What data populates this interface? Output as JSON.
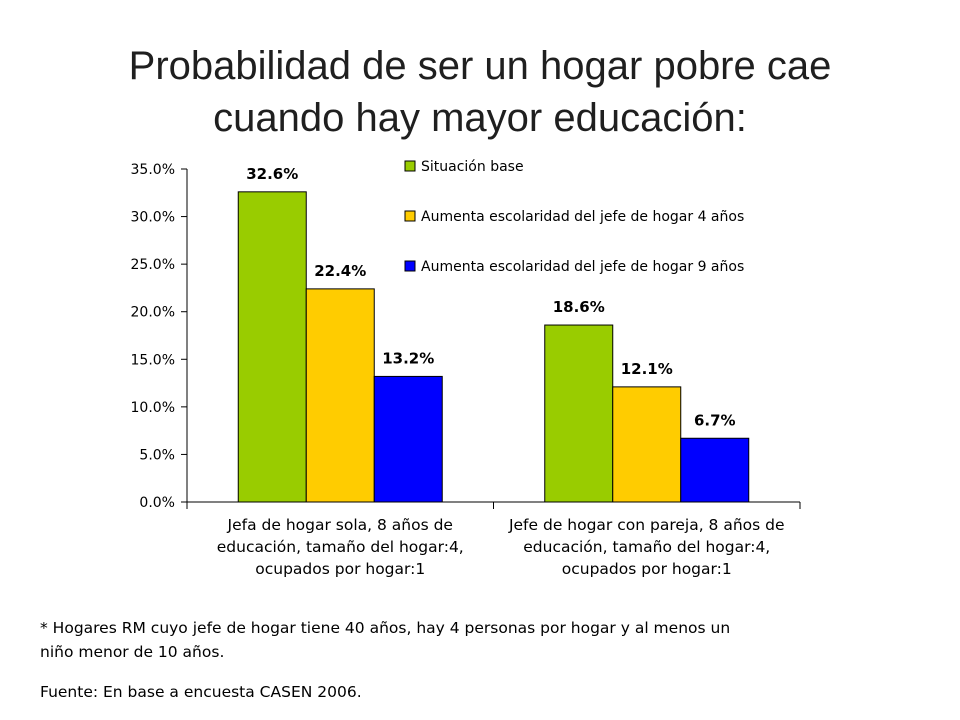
{
  "title": {
    "line1": "Probabilidad de ser un hogar pobre cae",
    "line2": "cuando hay mayor educación:"
  },
  "chart_data": {
    "type": "bar",
    "categories": [
      [
        "Jefa de hogar sola, 8 años de",
        "educación, tamaño del hogar:4,",
        "ocupados por hogar:1"
      ],
      [
        "Jefe de hogar con pareja, 8 años de",
        "educación, tamaño del hogar:4,",
        "ocupados por hogar:1"
      ]
    ],
    "series": [
      {
        "name": "Situación base",
        "values": [
          32.6,
          18.6
        ],
        "labels": [
          "32.6%",
          "18.6%"
        ],
        "color": "#99cc00"
      },
      {
        "name": "Aumenta escolaridad del jefe de hogar 4 años",
        "values": [
          22.4,
          12.1
        ],
        "labels": [
          "22.4%",
          "12.1%"
        ],
        "color": "#ffcc00"
      },
      {
        "name": "Aumenta escolaridad del jefe de hogar 9 años",
        "values": [
          13.2,
          6.7
        ],
        "labels": [
          "13.2%",
          "6.7%"
        ],
        "color": "#0000ff"
      }
    ],
    "yticks": [
      "0.0%",
      "5.0%",
      "10.0%",
      "15.0%",
      "20.0%",
      "25.0%",
      "30.0%",
      "35.0%"
    ],
    "ylim": [
      0,
      35
    ],
    "legend_position": "top-right",
    "grid": false
  },
  "footnote": {
    "line1": "* Hogares RM cuyo jefe de hogar tiene 40 años, hay 4 personas por hogar y al menos un",
    "line2": "niño menor de 10 años."
  },
  "source": "Fuente: En base a encuesta CASEN 2006."
}
